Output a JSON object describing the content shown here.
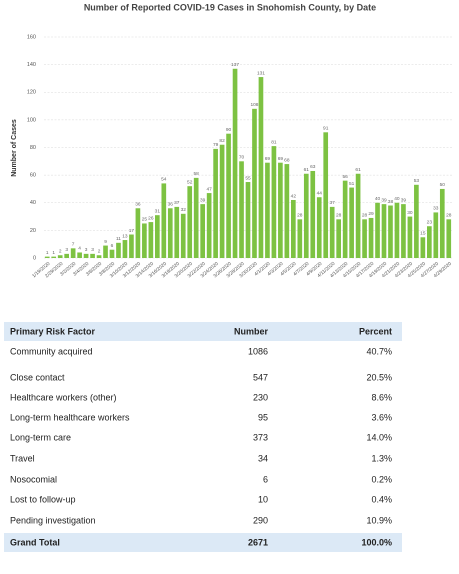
{
  "chart_data": {
    "type": "bar",
    "title": "Number of Reported COVID-19 Cases in Snohomish County, by Date",
    "y_label": "Number of Cases",
    "color": "#7dc242",
    "grid": true,
    "ylim": [
      0,
      160
    ],
    "yticks": [
      0,
      20,
      40,
      60,
      80,
      100,
      120,
      140,
      160
    ],
    "categories": [
      "1/19/2020",
      null,
      "2/29/2020",
      null,
      "3/2/2020",
      null,
      "3/4/2020",
      null,
      "3/6/2020",
      null,
      "3/8/2020",
      null,
      "3/10/2020",
      null,
      "3/12/2020",
      null,
      "3/14/2020",
      null,
      "3/16/2020",
      null,
      "3/18/2020",
      null,
      "3/20/2020",
      null,
      "3/22/2020",
      null,
      "3/24/2020",
      null,
      "3/26/2020",
      null,
      "3/28/2020",
      null,
      "3/30/2020",
      null,
      "4/1/2020",
      null,
      "4/3/2020",
      null,
      "4/5/2020",
      null,
      "4/7/2020",
      null,
      "4/9/2020",
      null,
      "4/11/2020",
      null,
      "4/13/2020",
      null,
      "4/15/2020",
      null,
      "4/17/2020",
      null,
      "4/19/2020",
      null,
      "4/21/2020",
      null,
      "4/23/2020",
      null,
      "4/25/2020",
      null,
      "4/27/2020",
      null,
      "4/29/2020"
    ],
    "values": [
      1,
      1,
      2,
      3,
      7,
      4,
      3,
      3,
      2,
      9,
      6,
      11,
      13,
      17,
      36,
      25,
      26,
      31,
      54,
      36,
      37,
      32,
      52,
      58,
      39,
      47,
      79,
      82,
      90,
      137,
      70,
      55,
      108,
      131,
      69,
      81,
      69,
      68,
      42,
      28,
      61,
      63,
      44,
      91,
      37,
      28,
      56,
      51,
      61,
      28,
      29,
      40,
      39,
      38,
      40,
      39,
      30,
      53,
      15,
      23,
      33,
      50,
      28
    ]
  },
  "table": {
    "header": [
      "Primary Risk Factor",
      "Number",
      "Percent"
    ],
    "rows": [
      [
        "Community acquired",
        1086,
        "40.7%"
      ],
      [
        "Close contact",
        547,
        "20.5%"
      ],
      [
        "Healthcare workers (other)",
        230,
        "8.6%"
      ],
      [
        "Long-term healthcare workers",
        95,
        "3.6%"
      ],
      [
        "Long-term care",
        373,
        "14.0%"
      ],
      [
        "Travel",
        34,
        "1.3%"
      ],
      [
        "Nosocomial",
        6,
        "0.2%"
      ],
      [
        "Lost to follow-up",
        10,
        "0.4%"
      ],
      [
        "Pending investigation",
        290,
        "10.9%"
      ]
    ],
    "total": [
      "Grand Total",
      2671,
      "100.0%"
    ]
  }
}
